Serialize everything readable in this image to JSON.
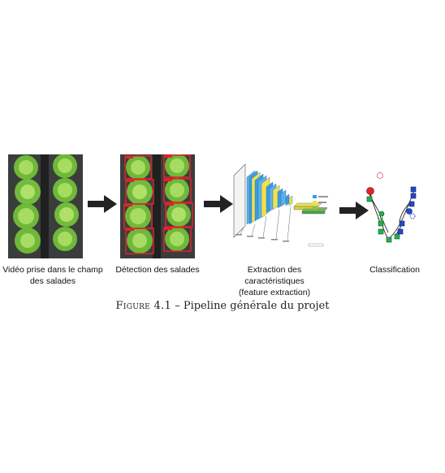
{
  "stages": [
    {
      "label_lines": [
        "Vidéo prise dans le champ",
        "des salades"
      ]
    },
    {
      "label_lines": [
        "Détection des salades"
      ]
    },
    {
      "label_lines": [
        "Extraction des caractéristiques",
        "(feature extraction)"
      ]
    },
    {
      "label_lines": [
        "Classification"
      ]
    }
  ],
  "caption": {
    "figure_label": "Figure 4.1",
    "separator": " – ",
    "text": "Pipeline générale du projet"
  },
  "icons": [
    "arrow-right-icon",
    "arrow-right-icon",
    "arrow-right-icon"
  ],
  "colors": {
    "lettuce": "#7cc243",
    "soil": "#3a3a3a",
    "detection_box": "#e0242a",
    "cnn_blue": "#3d9be0",
    "cnn_yellow": "#f2e14a",
    "class_red": "#e0242a",
    "class_green": "#22b14c",
    "class_blue": "#2448c8"
  }
}
